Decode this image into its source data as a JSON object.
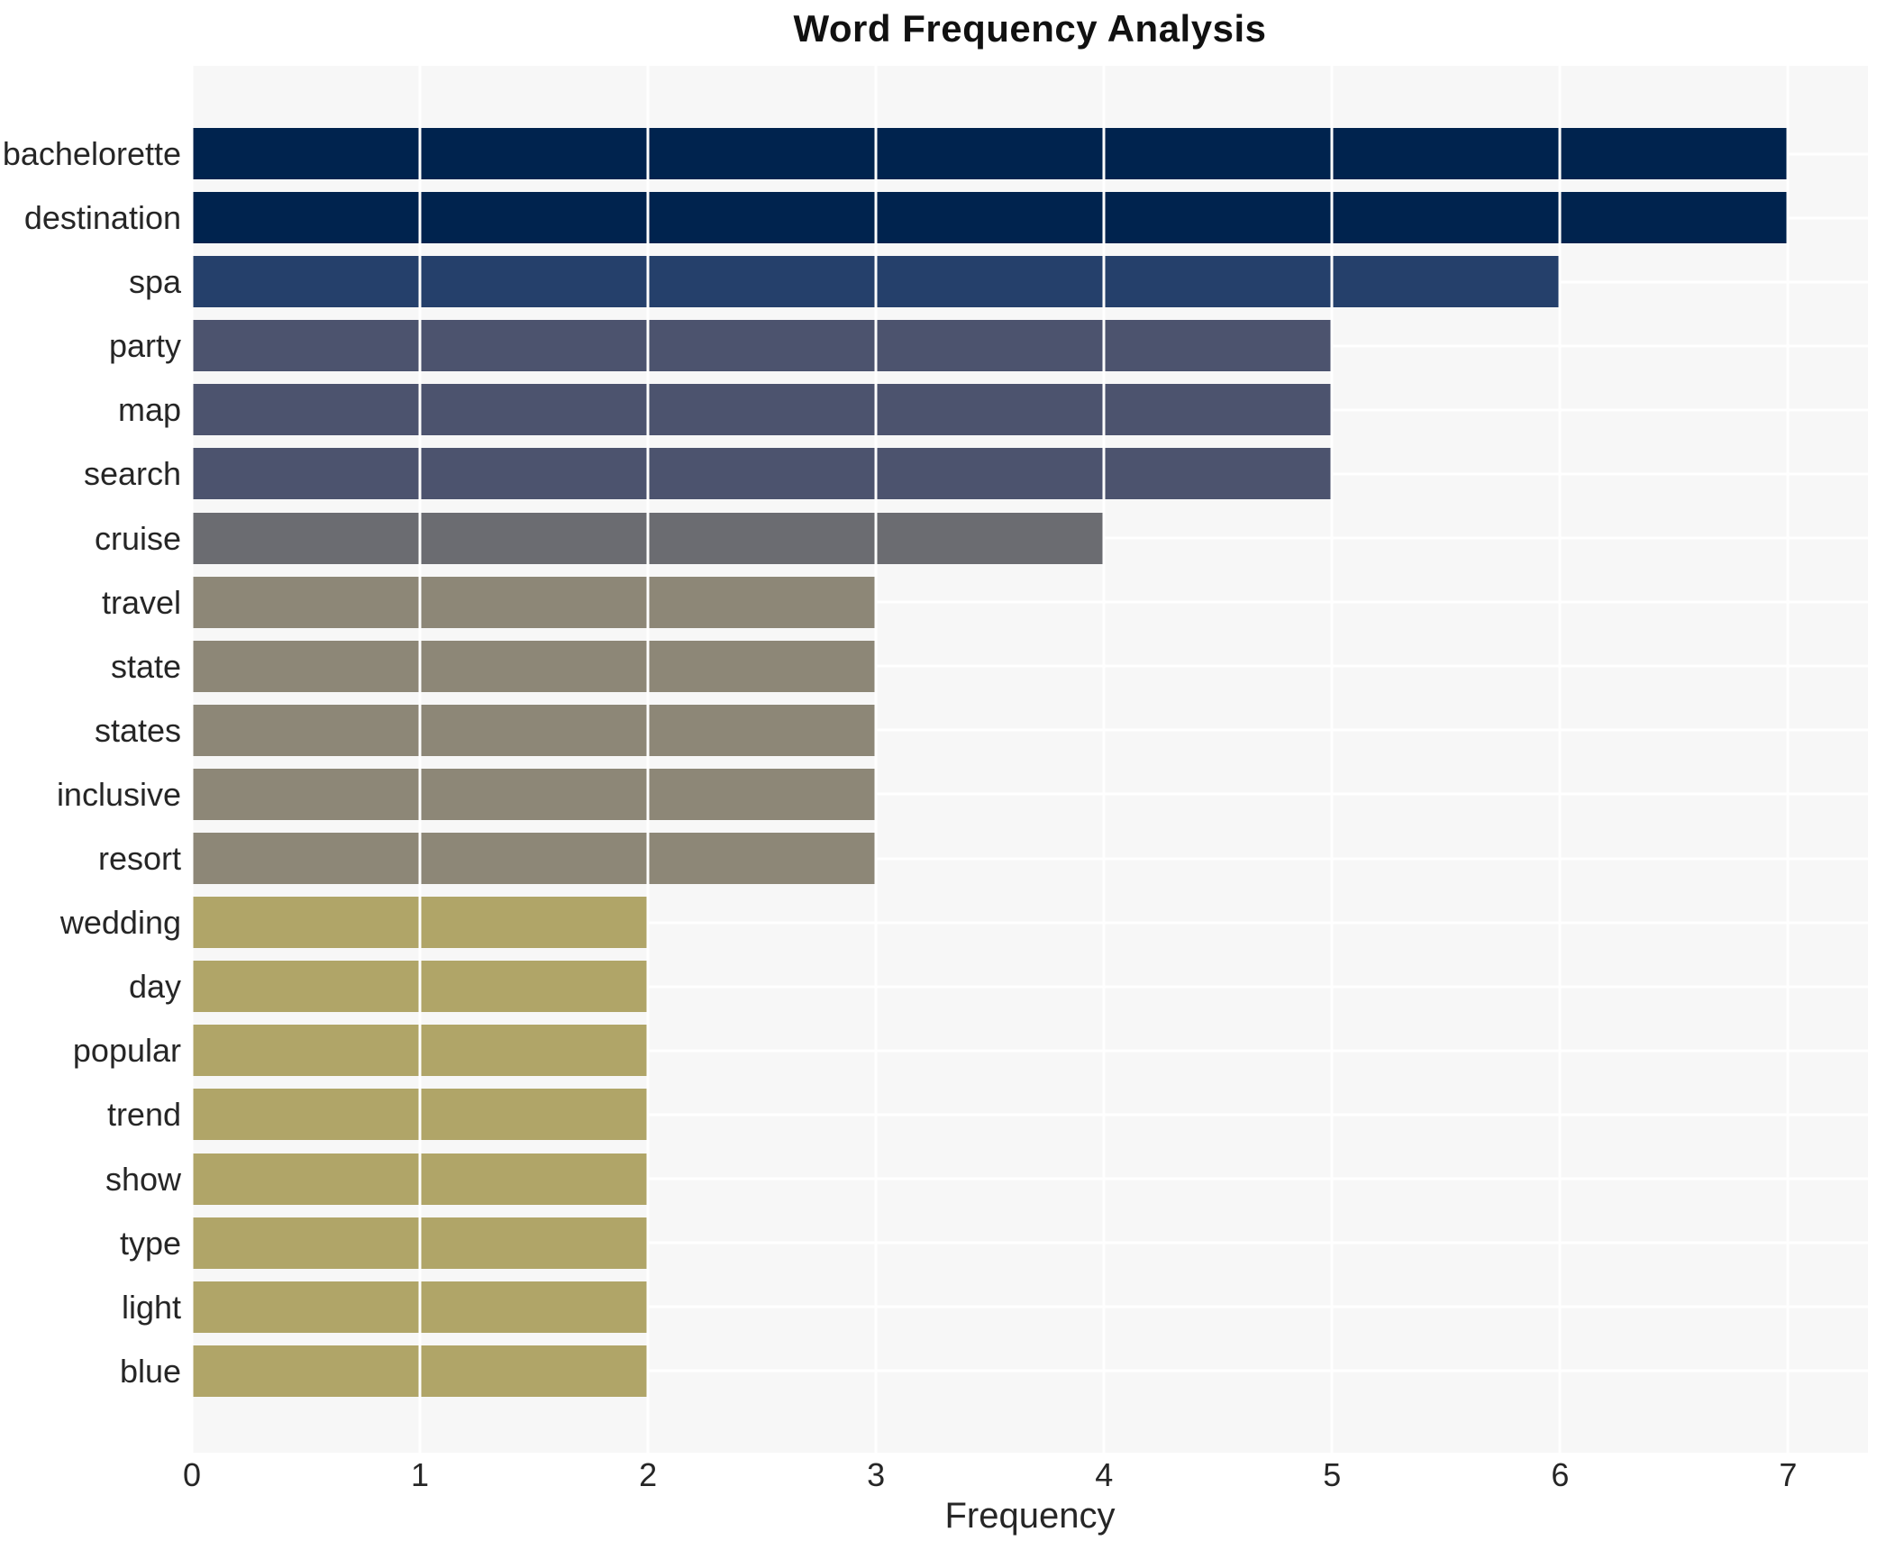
{
  "chart_data": {
    "type": "bar",
    "orientation": "horizontal",
    "title": "Word Frequency Analysis",
    "xlabel": "Frequency",
    "ylabel": "",
    "xlim": [
      0,
      7.35
    ],
    "xticks": [
      0,
      1,
      2,
      3,
      4,
      5,
      6,
      7
    ],
    "grid": "on",
    "plot_background": "#f7f7f7",
    "gridline_color": "#ffffff",
    "categories": [
      "bachelorette",
      "destination",
      "spa",
      "party",
      "map",
      "search",
      "cruise",
      "travel",
      "state",
      "states",
      "inclusive",
      "resort",
      "wedding",
      "day",
      "popular",
      "trend",
      "show",
      "type",
      "light",
      "blue"
    ],
    "values": [
      7,
      7,
      6,
      5,
      5,
      5,
      4,
      3,
      3,
      3,
      3,
      3,
      2,
      2,
      2,
      2,
      2,
      2,
      2,
      2
    ],
    "bars": [
      {
        "word": "bachelorette",
        "value": 7,
        "color": "#00234e"
      },
      {
        "word": "destination",
        "value": 7,
        "color": "#00234e"
      },
      {
        "word": "spa",
        "value": 6,
        "color": "#25406b"
      },
      {
        "word": "party",
        "value": 5,
        "color": "#4c536e"
      },
      {
        "word": "map",
        "value": 5,
        "color": "#4c536e"
      },
      {
        "word": "search",
        "value": 5,
        "color": "#4c536e"
      },
      {
        "word": "cruise",
        "value": 4,
        "color": "#6b6c71"
      },
      {
        "word": "travel",
        "value": 3,
        "color": "#8d8777"
      },
      {
        "word": "state",
        "value": 3,
        "color": "#8d8777"
      },
      {
        "word": "states",
        "value": 3,
        "color": "#8d8777"
      },
      {
        "word": "inclusive",
        "value": 3,
        "color": "#8d8777"
      },
      {
        "word": "resort",
        "value": 3,
        "color": "#8d8777"
      },
      {
        "word": "wedding",
        "value": 2,
        "color": "#b0a568"
      },
      {
        "word": "day",
        "value": 2,
        "color": "#b0a568"
      },
      {
        "word": "popular",
        "value": 2,
        "color": "#b0a568"
      },
      {
        "word": "trend",
        "value": 2,
        "color": "#b0a568"
      },
      {
        "word": "show",
        "value": 2,
        "color": "#b0a568"
      },
      {
        "word": "type",
        "value": 2,
        "color": "#b0a568"
      },
      {
        "word": "light",
        "value": 2,
        "color": "#b0a568"
      },
      {
        "word": "blue",
        "value": 2,
        "color": "#b0a568"
      }
    ]
  }
}
